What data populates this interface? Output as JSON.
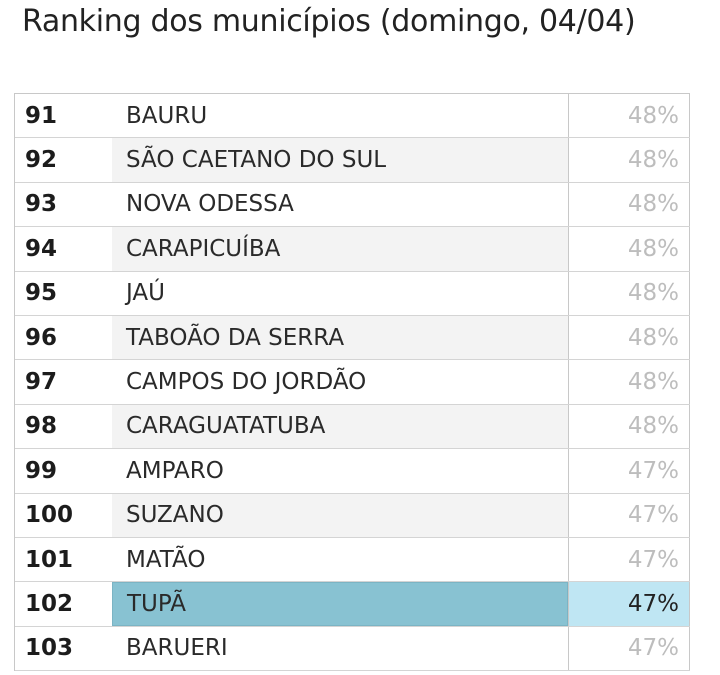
{
  "title": "Ranking dos municípios (domingo, 04/04)",
  "highlight_colors": {
    "name_bg": "#88c2d2",
    "pct_bg": "#bfe6f3"
  },
  "rows": [
    {
      "rank": "91",
      "name": "BAURU",
      "pct": "48%"
    },
    {
      "rank": "92",
      "name": "SÃO CAETANO DO SUL",
      "pct": "48%"
    },
    {
      "rank": "93",
      "name": "NOVA ODESSA",
      "pct": "48%"
    },
    {
      "rank": "94",
      "name": "CARAPICUÍBA",
      "pct": "48%"
    },
    {
      "rank": "95",
      "name": "JAÚ",
      "pct": "48%"
    },
    {
      "rank": "96",
      "name": "TABOÃO DA SERRA",
      "pct": "48%"
    },
    {
      "rank": "97",
      "name": "CAMPOS DO JORDÃO",
      "pct": "48%"
    },
    {
      "rank": "98",
      "name": "CARAGUATATUBA",
      "pct": "48%"
    },
    {
      "rank": "99",
      "name": "AMPARO",
      "pct": "47%"
    },
    {
      "rank": "100",
      "name": "SUZANO",
      "pct": "47%"
    },
    {
      "rank": "101",
      "name": "MATÃO",
      "pct": "47%"
    },
    {
      "rank": "102",
      "name": "TUPÃ",
      "pct": "47%"
    },
    {
      "rank": "103",
      "name": "BARUERI",
      "pct": "47%"
    }
  ]
}
